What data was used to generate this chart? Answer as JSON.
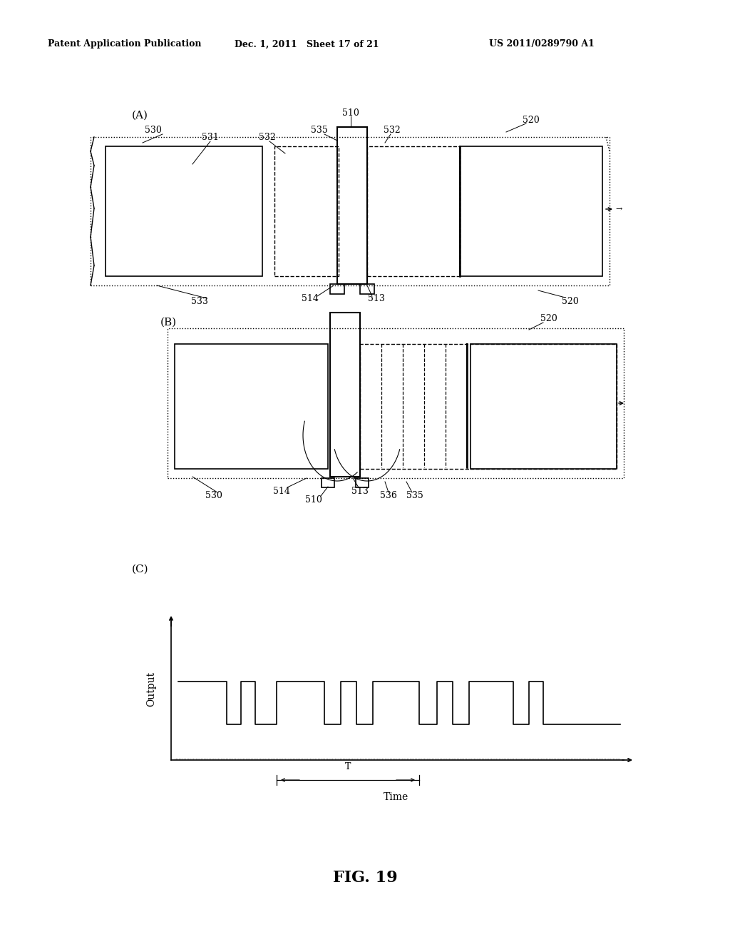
{
  "bg_color": "#ffffff",
  "header_left": "Patent Application Publication",
  "header_center": "Dec. 1, 2011   Sheet 17 of 21",
  "header_right": "US 2011/0289790 A1",
  "fig_label": "FIG. 19",
  "panel_A_label": "(A)",
  "panel_B_label": "(B)",
  "panel_C_label": "(C)",
  "ylabel_C": "Output",
  "xlabel_C": "Time",
  "T_label": "T"
}
